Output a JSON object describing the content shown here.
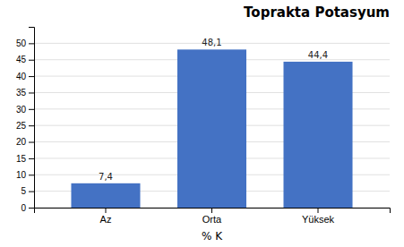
{
  "chart_data": {
    "type": "bar",
    "title": "Toprakta Potasyum",
    "xlabel": "% K",
    "categories": [
      "Az",
      "Orta",
      "Yüksek"
    ],
    "values": [
      7.4,
      48.1,
      44.4
    ],
    "value_labels": [
      "7,4",
      "48,1",
      "44,4"
    ],
    "data_labels": true,
    "color": "#4472C4",
    "ylim": [
      0,
      55
    ],
    "yticks": [
      0,
      5,
      10,
      15,
      20,
      25,
      30,
      35,
      40,
      45,
      50
    ],
    "grid": true
  }
}
